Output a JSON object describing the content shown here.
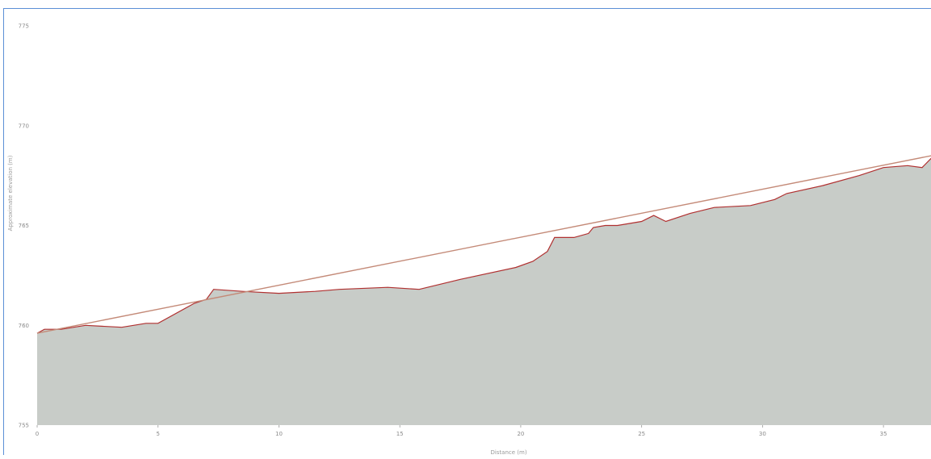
{
  "chart_data": {
    "type": "area",
    "title": "",
    "xlabel": "Distance (m)",
    "ylabel": "Approximate elevation (m)",
    "xlim": [
      0,
      37
    ],
    "ylim": [
      755,
      775
    ],
    "x_ticks": [
      0,
      5,
      10,
      15,
      20,
      25,
      30,
      35
    ],
    "x_tick_labels": [
      "0",
      "5",
      "10",
      "15",
      "20",
      "25",
      "30",
      "35"
    ],
    "y_ticks": [
      755,
      760,
      765,
      770,
      775
    ],
    "y_tick_labels": [
      "755",
      "760",
      "765",
      "770",
      "775"
    ],
    "grid": false,
    "legend": false,
    "series": [
      {
        "role": "terrain-fill",
        "color": "#c8ccc8",
        "x": [
          0,
          0.3,
          1,
          2,
          3.5,
          4.5,
          5,
          6.5,
          7,
          7.3,
          8.5,
          10,
          11.5,
          12.5,
          14.5,
          15.8,
          17.5,
          19.8,
          20.5,
          21.1,
          21.4,
          21.8,
          22.2,
          22.8,
          23,
          23.5,
          24,
          25,
          25.5,
          26,
          27,
          28,
          29.5,
          30.5,
          31,
          32.5,
          34,
          35,
          36,
          36.6,
          37
        ],
        "values": [
          759.6,
          759.8,
          759.8,
          760.0,
          759.9,
          760.1,
          760.1,
          761.1,
          761.3,
          761.8,
          761.7,
          761.6,
          761.7,
          761.8,
          761.9,
          761.8,
          762.3,
          762.9,
          763.2,
          763.7,
          764.4,
          764.4,
          764.4,
          764.6,
          764.9,
          765.0,
          765.0,
          765.2,
          765.5,
          765.2,
          765.6,
          765.9,
          766.0,
          766.3,
          766.6,
          767.0,
          767.5,
          767.9,
          768.0,
          767.9,
          768.4
        ]
      },
      {
        "role": "profile-line",
        "color": "#b03030",
        "x": [
          0,
          0.3,
          1,
          2,
          3.5,
          4.5,
          5,
          6.5,
          7,
          7.3,
          8.5,
          10,
          11.5,
          12.5,
          14.5,
          15.8,
          17.5,
          19.8,
          20.5,
          21.1,
          21.4,
          21.8,
          22.2,
          22.8,
          23,
          23.5,
          24,
          25,
          25.5,
          26,
          27,
          28,
          29.5,
          30.5,
          31,
          32.5,
          34,
          35,
          36,
          36.6,
          37
        ],
        "values": [
          759.6,
          759.8,
          759.8,
          760.0,
          759.9,
          760.1,
          760.1,
          761.1,
          761.3,
          761.8,
          761.7,
          761.6,
          761.7,
          761.8,
          761.9,
          761.8,
          762.3,
          762.9,
          763.2,
          763.7,
          764.4,
          764.4,
          764.4,
          764.6,
          764.9,
          765.0,
          765.0,
          765.2,
          765.5,
          765.2,
          765.6,
          765.9,
          766.0,
          766.3,
          766.6,
          767.0,
          767.5,
          767.9,
          768.0,
          767.9,
          768.4
        ]
      },
      {
        "role": "straight-line",
        "color": "#c48a78",
        "x": [
          0,
          37
        ],
        "values": [
          759.6,
          768.5
        ]
      }
    ]
  }
}
